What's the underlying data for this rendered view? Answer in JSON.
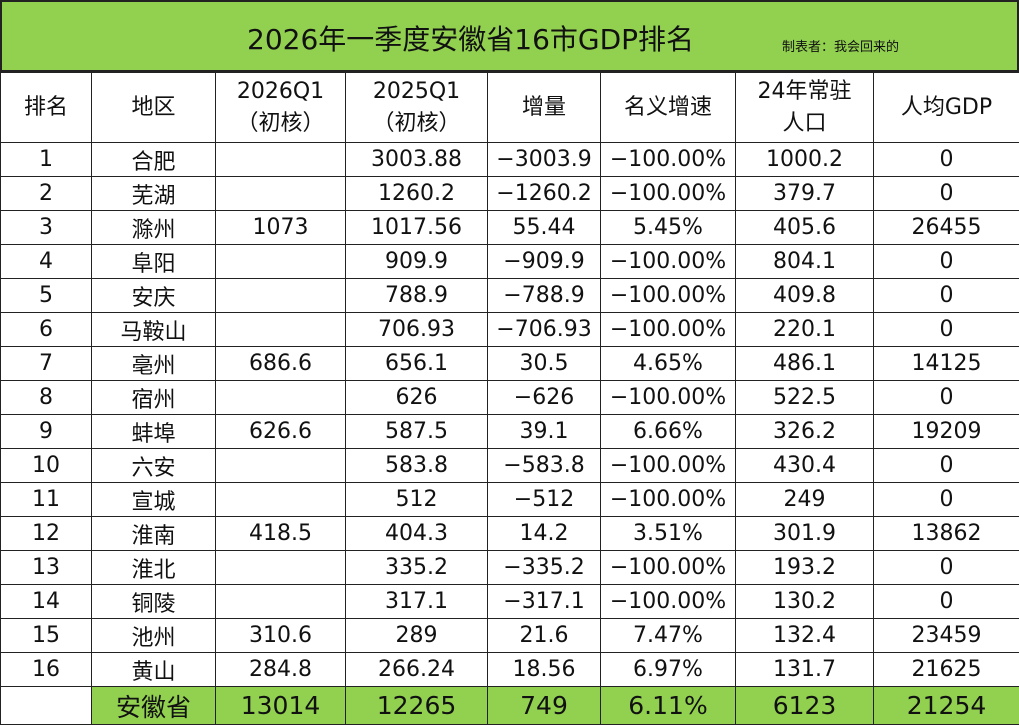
{
  "title": "2026年一季度安徽省16市GDP排名",
  "credit": "制表者：我会回来的",
  "colors": {
    "accent": "#92d050"
  },
  "headers": [
    [
      "排名"
    ],
    [
      "地区"
    ],
    [
      "2026Q1",
      "（初核）"
    ],
    [
      "2025Q1",
      "（初核）"
    ],
    [
      "增量"
    ],
    [
      "名义增速"
    ],
    [
      "24年常驻",
      "人口"
    ],
    [
      "人均GDP"
    ]
  ],
  "rows": [
    [
      "1",
      "合肥",
      "",
      "3003.88",
      "−3003.9",
      "−100.00%",
      "1000.2",
      "0"
    ],
    [
      "2",
      "芜湖",
      "",
      "1260.2",
      "−1260.2",
      "−100.00%",
      "379.7",
      "0"
    ],
    [
      "3",
      "滁州",
      "1073",
      "1017.56",
      "55.44",
      "5.45%",
      "405.6",
      "26455"
    ],
    [
      "4",
      "阜阳",
      "",
      "909.9",
      "−909.9",
      "−100.00%",
      "804.1",
      "0"
    ],
    [
      "5",
      "安庆",
      "",
      "788.9",
      "−788.9",
      "−100.00%",
      "409.8",
      "0"
    ],
    [
      "6",
      "马鞍山",
      "",
      "706.93",
      "−706.93",
      "−100.00%",
      "220.1",
      "0"
    ],
    [
      "7",
      "亳州",
      "686.6",
      "656.1",
      "30.5",
      "4.65%",
      "486.1",
      "14125"
    ],
    [
      "8",
      "宿州",
      "",
      "626",
      "−626",
      "−100.00%",
      "522.5",
      "0"
    ],
    [
      "9",
      "蚌埠",
      "626.6",
      "587.5",
      "39.1",
      "6.66%",
      "326.2",
      "19209"
    ],
    [
      "10",
      "六安",
      "",
      "583.8",
      "−583.8",
      "−100.00%",
      "430.4",
      "0"
    ],
    [
      "11",
      "宣城",
      "",
      "512",
      "−512",
      "−100.00%",
      "249",
      "0"
    ],
    [
      "12",
      "淮南",
      "418.5",
      "404.3",
      "14.2",
      "3.51%",
      "301.9",
      "13862"
    ],
    [
      "13",
      "淮北",
      "",
      "335.2",
      "−335.2",
      "−100.00%",
      "193.2",
      "0"
    ],
    [
      "14",
      "铜陵",
      "",
      "317.1",
      "−317.1",
      "−100.00%",
      "130.2",
      "0"
    ],
    [
      "15",
      "池州",
      "310.6",
      "289",
      "21.6",
      "7.47%",
      "132.4",
      "23459"
    ],
    [
      "16",
      "黄山",
      "284.8",
      "266.24",
      "18.56",
      "6.97%",
      "131.7",
      "21625"
    ]
  ],
  "total": [
    "",
    "安徽省",
    "13014",
    "12265",
    "749",
    "6.11%",
    "6123",
    "21254"
  ]
}
